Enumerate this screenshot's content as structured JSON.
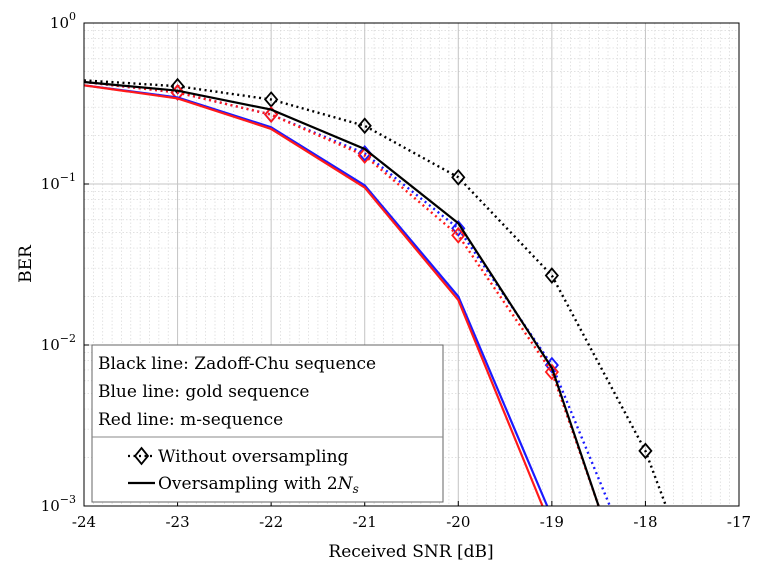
{
  "chart_data": {
    "type": "line",
    "title": "",
    "xlabel": "Received SNR [dB]",
    "ylabel": "BER",
    "xlim": [
      -24,
      -17
    ],
    "ylim": [
      0.001,
      1
    ],
    "yscale": "log",
    "grid": true,
    "minor_grid": true,
    "x_ticks": [
      -24,
      -23,
      -22,
      -21,
      -20,
      -19,
      -18,
      -17
    ],
    "x_tick_labels": [
      "-24",
      "-23",
      "-22",
      "-21",
      "-20",
      "-19",
      "-18",
      "-17"
    ],
    "y_ticks": [
      1,
      0.1,
      0.01,
      0.001
    ],
    "y_tick_labels": [
      {
        "base": "10",
        "exp": "0"
      },
      {
        "base": "10",
        "exp": "−1"
      },
      {
        "base": "10",
        "exp": "−2"
      },
      {
        "base": "10",
        "exp": "−3"
      }
    ],
    "series": [
      {
        "group": "zc",
        "style": "dotted",
        "marker": "diamond",
        "color": "#000000",
        "x": [
          -24,
          -23,
          -22,
          -21,
          -20,
          -19,
          -18,
          -17.78
        ],
        "y": [
          0.44,
          0.405,
          0.335,
          0.23,
          0.11,
          0.027,
          0.0022,
          0.001
        ]
      },
      {
        "group": "gold",
        "style": "dotted",
        "marker": "diamond",
        "color": "#1a1aff",
        "x": [
          -24,
          -23,
          -22,
          -21,
          -20,
          -19,
          -18.38
        ],
        "y": [
          0.43,
          0.37,
          0.27,
          0.155,
          0.053,
          0.0075,
          0.001
        ]
      },
      {
        "group": "m",
        "style": "dotted",
        "marker": "diamond",
        "color": "#ff1a1a",
        "x": [
          -24,
          -23,
          -22,
          -21,
          -20,
          -19,
          -18.5
        ],
        "y": [
          0.43,
          0.37,
          0.27,
          0.15,
          0.048,
          0.0068,
          0.001
        ]
      },
      {
        "group": "zc",
        "style": "solid",
        "marker": "none",
        "color": "#000000",
        "x": [
          -24,
          -23,
          -22,
          -21,
          -20,
          -19,
          -18.5
        ],
        "y": [
          0.43,
          0.38,
          0.29,
          0.165,
          0.057,
          0.0072,
          0.001
        ]
      },
      {
        "group": "gold",
        "style": "solid",
        "marker": "none",
        "color": "#1a1aff",
        "x": [
          -24,
          -23,
          -22,
          -21,
          -20,
          -19.05
        ],
        "y": [
          0.41,
          0.345,
          0.225,
          0.098,
          0.02,
          0.001
        ]
      },
      {
        "group": "m",
        "style": "solid",
        "marker": "none",
        "color": "#ff1a1a",
        "x": [
          -24,
          -23,
          -22,
          -21,
          -20,
          -19.1
        ],
        "y": [
          0.41,
          0.34,
          0.22,
          0.095,
          0.019,
          0.001
        ]
      }
    ],
    "legend": {
      "position": "bottom-left",
      "text_lines": [
        "Black line: Zadoff-Chu sequence",
        "Blue line: gold sequence",
        "Red line: m-sequence"
      ],
      "entries": [
        {
          "label": "Without oversampling",
          "style": "dotted",
          "marker": "diamond"
        },
        {
          "label_prefix": "Oversampling with 2",
          "label_symbol": "N",
          "label_sub": "s",
          "style": "solid",
          "marker": "none"
        }
      ]
    }
  }
}
